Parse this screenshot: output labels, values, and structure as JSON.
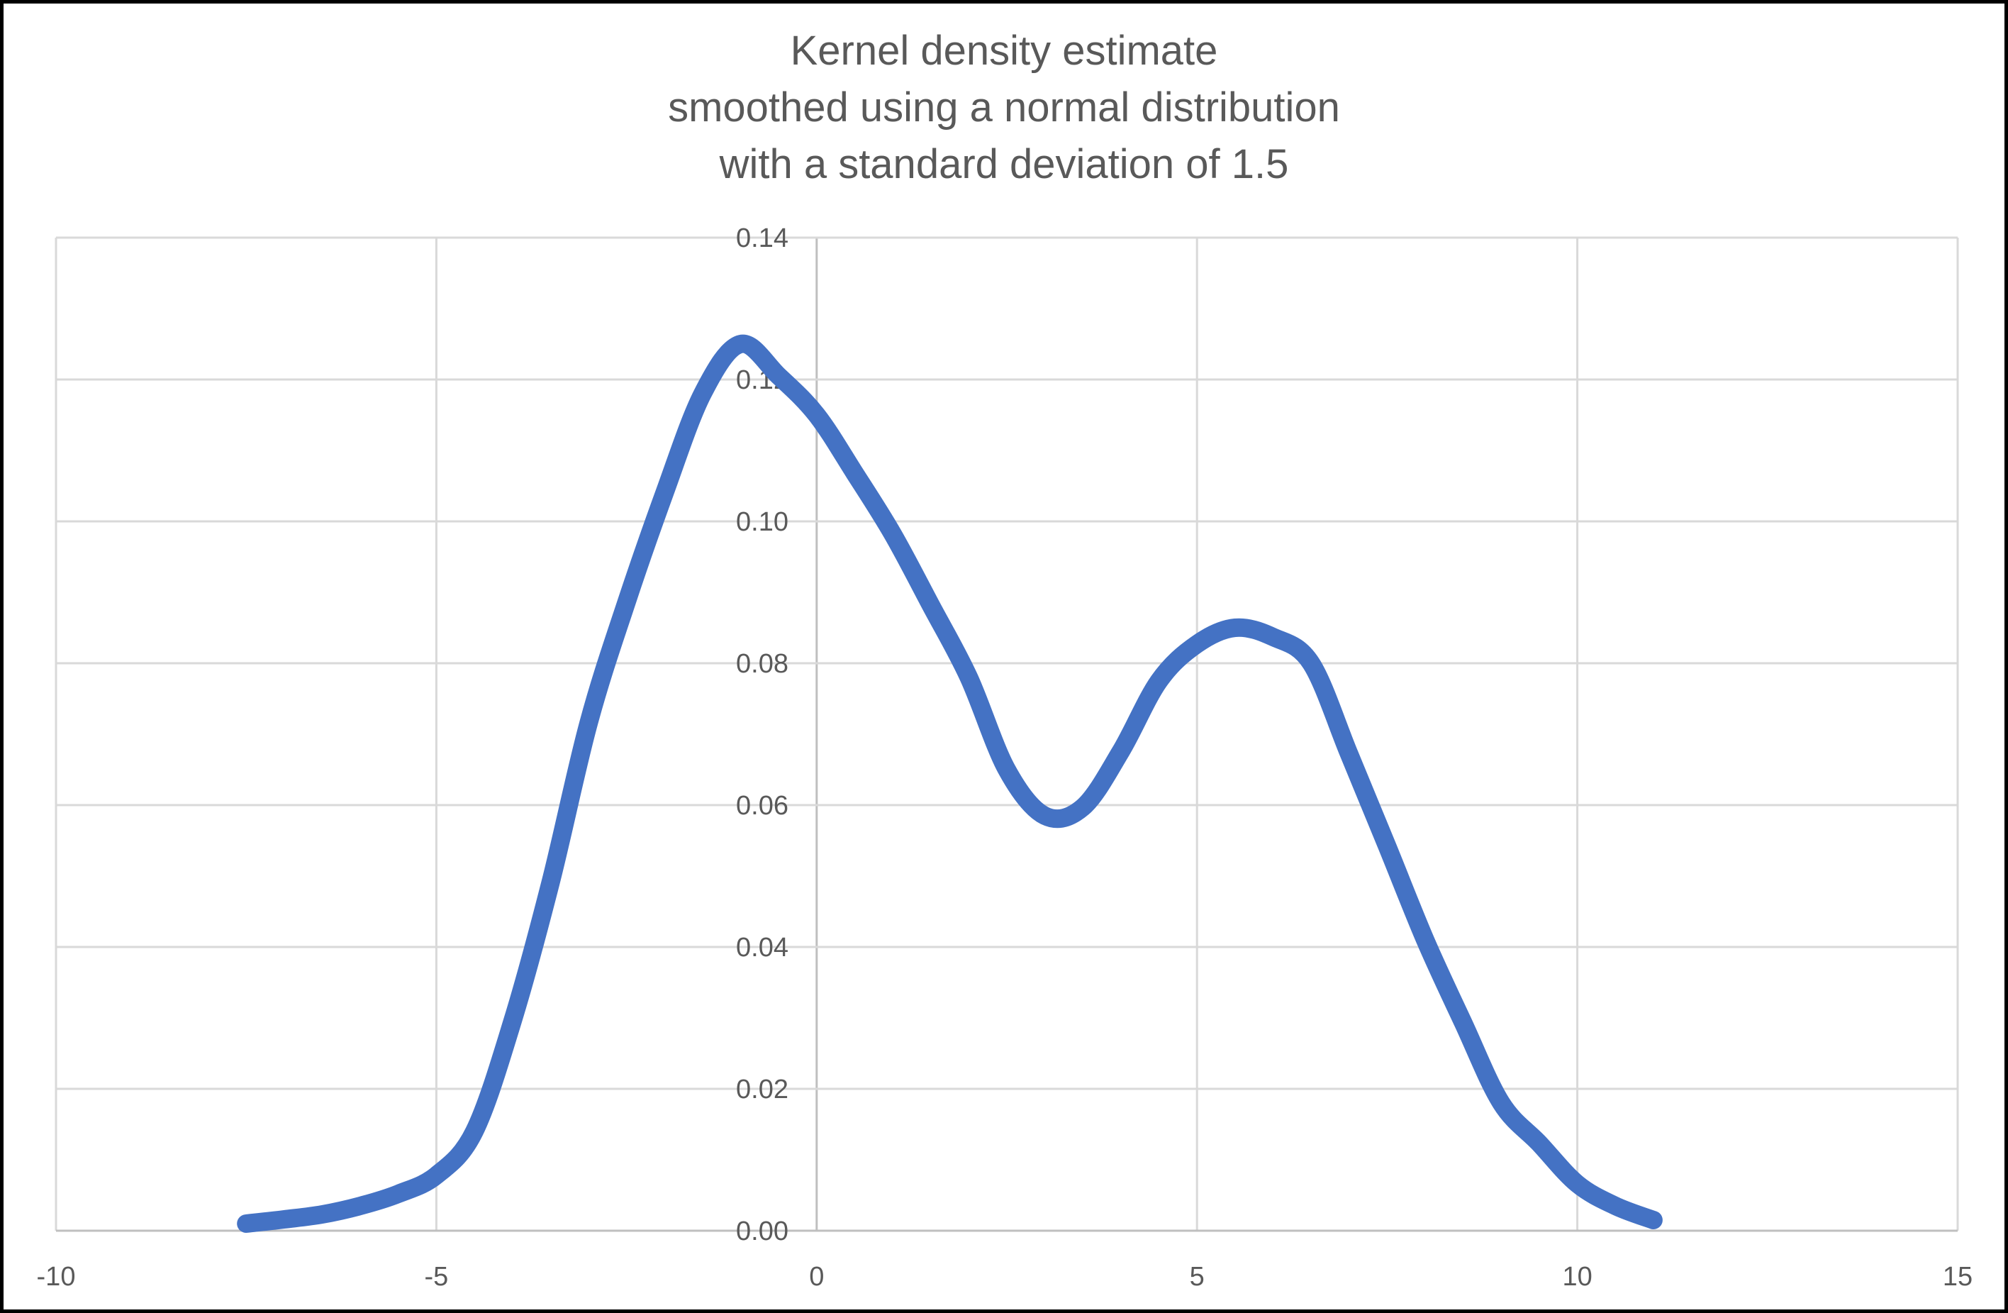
{
  "chart_data": {
    "type": "line",
    "title": "Kernel density estimate smoothed using a normal distribution with a standard deviation of 1.5",
    "title_lines": [
      "Kernel density estimate",
      "smoothed using a normal distribution",
      "with a standard deviation of 1.5"
    ],
    "xlabel": "",
    "ylabel": "",
    "xlim": [
      -10,
      15
    ],
    "ylim": [
      0,
      0.14
    ],
    "x_tick_values": [
      -10,
      -5,
      0,
      5,
      10,
      15
    ],
    "x_tick_labels": [
      "-10",
      "-5",
      "0",
      "5",
      "10",
      "15"
    ],
    "y_tick_values": [
      0,
      0.02,
      0.04,
      0.06,
      0.08,
      0.1,
      0.12,
      0.14
    ],
    "y_tick_labels": [
      "0.00",
      "0.02",
      "0.04",
      "0.06",
      "0.08",
      "0.10",
      "0.12",
      "0.14"
    ],
    "grid": true,
    "legend": "none",
    "series": [
      {
        "name": "kde-curve",
        "color": "#4472C4",
        "stroke_width_px": 26,
        "x": [
          -7.5,
          -7,
          -6.5,
          -6,
          -5.5,
          -5,
          -4.5,
          -4,
          -3.5,
          -3,
          -2.5,
          -2,
          -1.5,
          -1,
          -0.5,
          0,
          0.5,
          1,
          1.5,
          2,
          2.5,
          3,
          3.5,
          4,
          4.5,
          5,
          5.5,
          6,
          6.5,
          7,
          7.5,
          8,
          8.5,
          9,
          9.5,
          10,
          10.5,
          11
        ],
        "y": [
          0.001,
          0.0016,
          0.0023,
          0.0035,
          0.0052,
          0.0078,
          0.014,
          0.0295,
          0.049,
          0.0715,
          0.0886,
          0.104,
          0.118,
          0.125,
          0.1205,
          0.115,
          0.1068,
          0.0982,
          0.0882,
          0.078,
          0.065,
          0.0585,
          0.0597,
          0.0676,
          0.0775,
          0.0827,
          0.085,
          0.0837,
          0.08,
          0.0672,
          0.0542,
          0.041,
          0.0293,
          0.018,
          0.0123,
          0.0066,
          0.0035,
          0.0015
        ]
      }
    ],
    "annotations": {
      "peak_1": {
        "x": -1.1,
        "y": 0.125
      },
      "valley": {
        "x": 3.0,
        "y": 0.0585
      },
      "peak_2": {
        "x": 5.45,
        "y": 0.085
      }
    },
    "colors": {
      "title": "#595959",
      "tick_label": "#595959",
      "gridline": "#D9D9D9",
      "axis_line": "#BFBFBF",
      "page_border": "#000000",
      "background": "#FFFFFF"
    }
  }
}
